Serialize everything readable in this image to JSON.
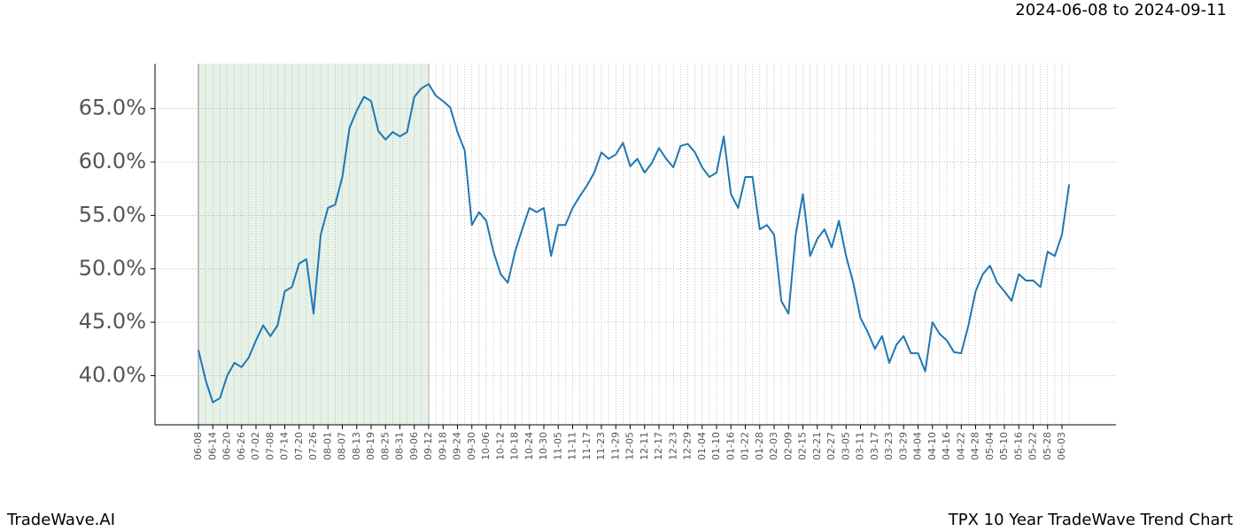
{
  "header": {
    "date_range": "2024-06-08 to 2024-09-11"
  },
  "footer": {
    "left": "TradeWave.AI",
    "right": "TPX 10 Year TradeWave Trend Chart"
  },
  "chart_data": {
    "type": "line",
    "categories": [
      "06-08",
      null,
      "06-14",
      null,
      "06-20",
      null,
      "06-26",
      null,
      "07-02",
      null,
      "07-08",
      null,
      "07-14",
      null,
      "07-20",
      null,
      "07-26",
      null,
      "08-01",
      null,
      "08-07",
      null,
      "08-13",
      null,
      "08-19",
      null,
      "08-25",
      null,
      "08-31",
      null,
      "09-06",
      null,
      "09-12",
      null,
      "09-18",
      null,
      "09-24",
      null,
      "09-30",
      null,
      "10-06",
      null,
      "10-12",
      null,
      "10-18",
      null,
      "10-24",
      null,
      "10-30",
      null,
      "11-05",
      null,
      "11-11",
      null,
      "11-17",
      null,
      "11-23",
      null,
      "11-29",
      null,
      "12-05",
      null,
      "12-11",
      null,
      "12-17",
      null,
      "12-23",
      null,
      "12-29",
      null,
      "01-04",
      null,
      "01-10",
      null,
      "01-16",
      null,
      "01-22",
      null,
      "01-28",
      null,
      "02-03",
      null,
      "02-09",
      null,
      "02-15",
      null,
      "02-21",
      null,
      "02-27",
      null,
      "03-05",
      null,
      "03-11",
      null,
      "03-17",
      null,
      "03-23",
      null,
      "03-29",
      null,
      "04-04",
      null,
      "04-10",
      null,
      "04-16",
      null,
      "04-22",
      null,
      "04-28",
      null,
      "05-04",
      null,
      "05-10",
      null,
      "05-16",
      null,
      "05-22",
      null,
      "05-28",
      null,
      "06-03",
      null
    ],
    "values": [
      42.4,
      39.6,
      37.5,
      37.9,
      40.0,
      41.2,
      40.8,
      41.7,
      43.3,
      44.7,
      43.7,
      44.7,
      47.9,
      48.3,
      50.5,
      50.9,
      45.8,
      53.2,
      55.7,
      56.0,
      58.6,
      63.2,
      64.8,
      66.1,
      65.7,
      62.9,
      62.1,
      62.8,
      62.4,
      62.8,
      66.1,
      66.9,
      67.3,
      66.2,
      65.7,
      65.1,
      62.8,
      61.1,
      54.1,
      55.3,
      54.5,
      51.6,
      49.5,
      48.7,
      51.6,
      53.7,
      55.7,
      55.3,
      55.7,
      51.2,
      54.1,
      54.1,
      55.7,
      56.8,
      57.8,
      59.0,
      60.9,
      60.3,
      60.7,
      61.8,
      59.6,
      60.3,
      59.0,
      59.9,
      61.3,
      60.3,
      59.5,
      61.5,
      61.7,
      60.9,
      59.5,
      58.6,
      59.0,
      62.4,
      57.0,
      55.7,
      58.6,
      58.6,
      53.7,
      54.1,
      53.2,
      47.0,
      45.8,
      53.2,
      57.0,
      51.2,
      52.8,
      53.7,
      52.0,
      54.5,
      51.2,
      48.7,
      45.4,
      44.1,
      42.5,
      43.7,
      41.2,
      42.9,
      43.7,
      42.1,
      42.1,
      40.4,
      45.0,
      43.9,
      43.3,
      42.2,
      42.1,
      44.7,
      47.9,
      49.5,
      50.3,
      48.7,
      47.9,
      47.0,
      49.5,
      48.9,
      48.9,
      48.3,
      51.6,
      51.2,
      53.2,
      57.9
    ],
    "color": "#1f77b4",
    "ylim": [
      35.4,
      69.2
    ],
    "yticks": [
      {
        "value": 40,
        "label": "40.0%"
      },
      {
        "value": 45,
        "label": "45.0%"
      },
      {
        "value": 50,
        "label": "50.0%"
      },
      {
        "value": 55,
        "label": "55.0%"
      },
      {
        "value": 60,
        "label": "60.0%"
      },
      {
        "value": 65,
        "label": "65.0%"
      }
    ],
    "grid": true,
    "shaded_range": {
      "from": "06-08",
      "to": "09-12",
      "color": "#2e8b3a"
    }
  }
}
